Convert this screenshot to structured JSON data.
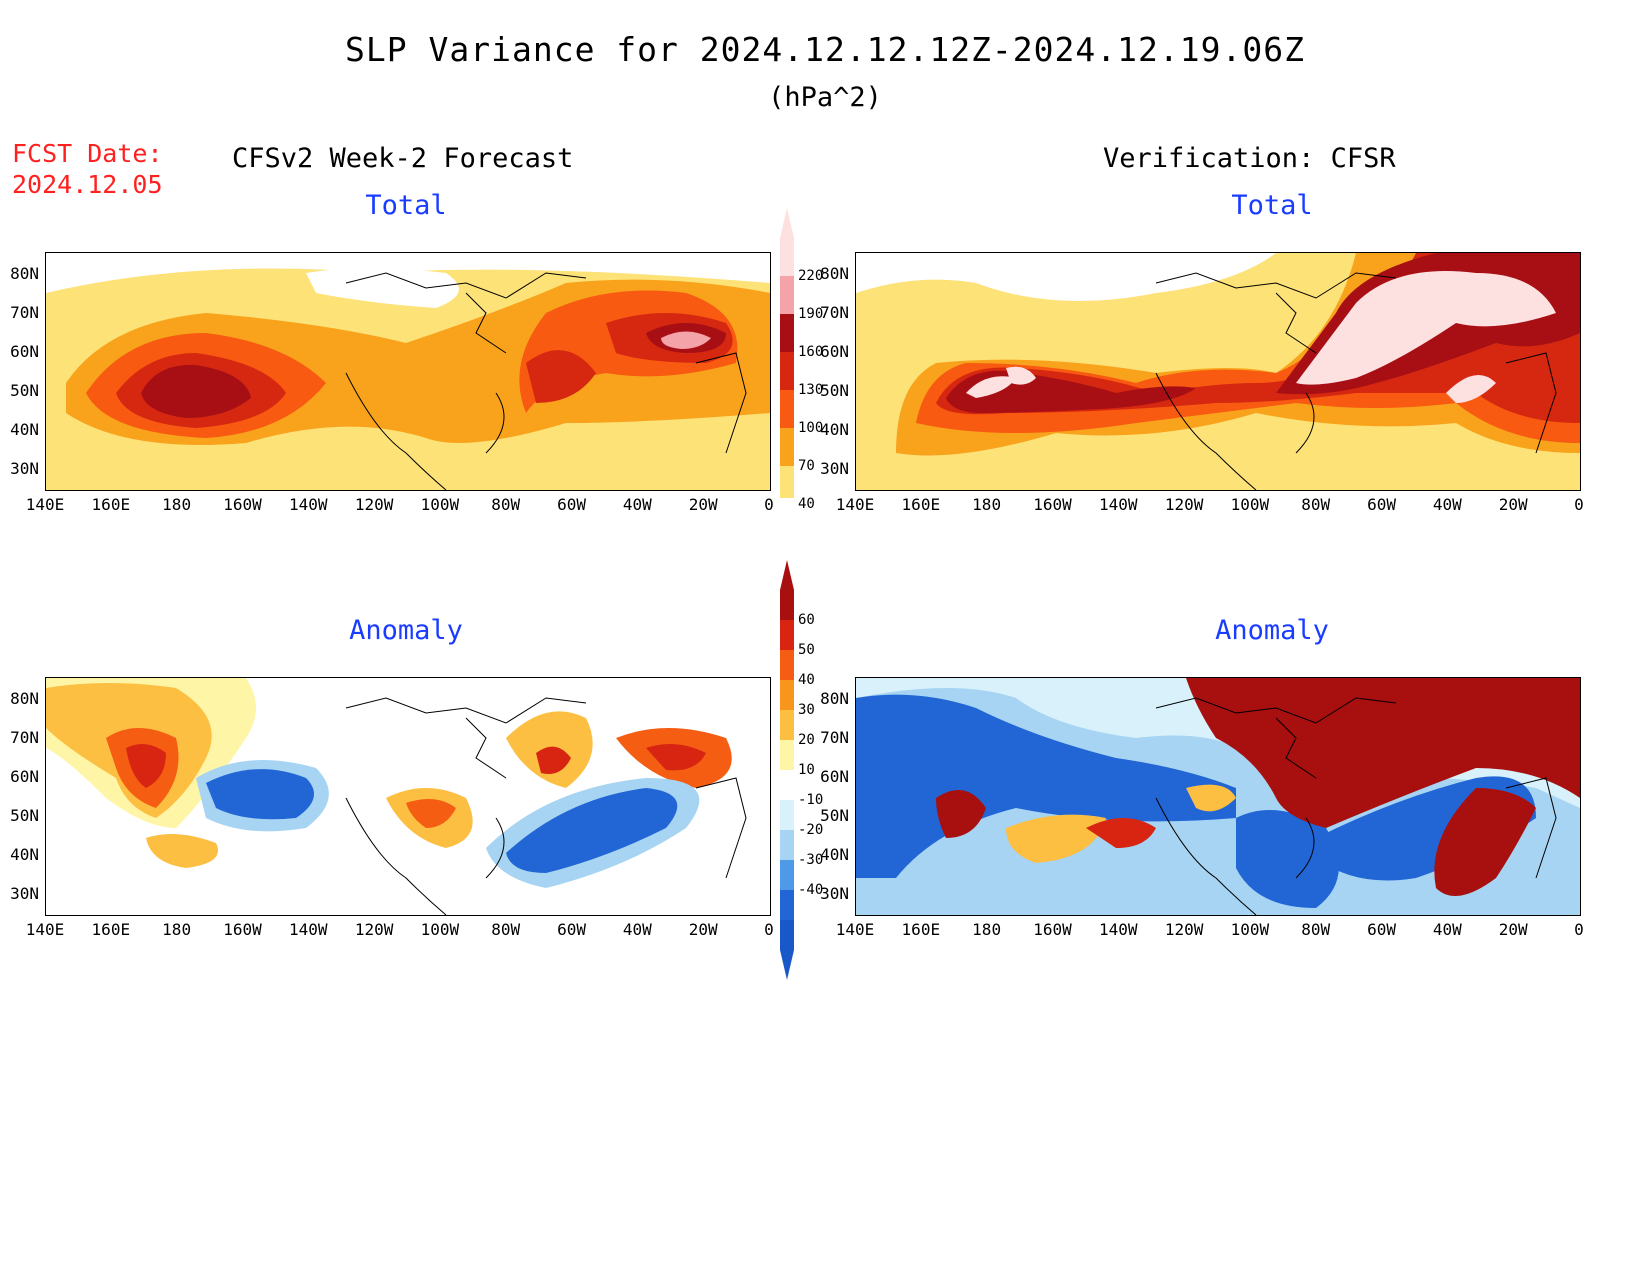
{
  "header": {
    "title": "SLP Variance for 2024.12.12.12Z-2024.12.19.06Z",
    "units": "(hPa^2)",
    "fcst_label_line1": "FCST Date:",
    "fcst_label_line2": "2024.12.05",
    "left_column_title": "CFSv2 Week-2 Forecast",
    "right_column_title": "Verification: CFSR"
  },
  "panels": {
    "forecast_total": {
      "subtitle": "Total"
    },
    "verification_total": {
      "subtitle": "Total"
    },
    "forecast_anomaly": {
      "subtitle": "Anomaly"
    },
    "verification_anomaly": {
      "subtitle": "Anomaly"
    }
  },
  "axes": {
    "lat_labels": [
      "80N",
      "70N",
      "60N",
      "50N",
      "40N",
      "30N"
    ],
    "lon_labels": [
      "140E",
      "160E",
      "180",
      "160W",
      "140W",
      "120W",
      "100W",
      "80W",
      "60W",
      "40W",
      "20W",
      "0"
    ]
  },
  "colorbars": {
    "total": {
      "levels": [
        "220",
        "190",
        "160",
        "130",
        "100",
        "70",
        "40"
      ],
      "colors": [
        "#fde0e0",
        "#f4a3a8",
        "#a80f14",
        "#d62810",
        "#f75a10",
        "#f9a21c",
        "#fde277"
      ]
    },
    "anomaly": {
      "levels": [
        "60",
        "50",
        "40",
        "30",
        "20",
        "10",
        "-10",
        "-20",
        "-30",
        "-40"
      ],
      "colors": [
        "#a80f0f",
        "#d82512",
        "#f55d12",
        "#f8951c",
        "#fcbf42",
        "#fff5a6",
        "#ffffff",
        "#d8f1fb",
        "#a6d4f2",
        "#4e9ae8",
        "#2266d6",
        "#1858c8"
      ]
    }
  },
  "colors": {
    "title_blue": "#1a3cff",
    "fcst_red": "#ff2020"
  }
}
